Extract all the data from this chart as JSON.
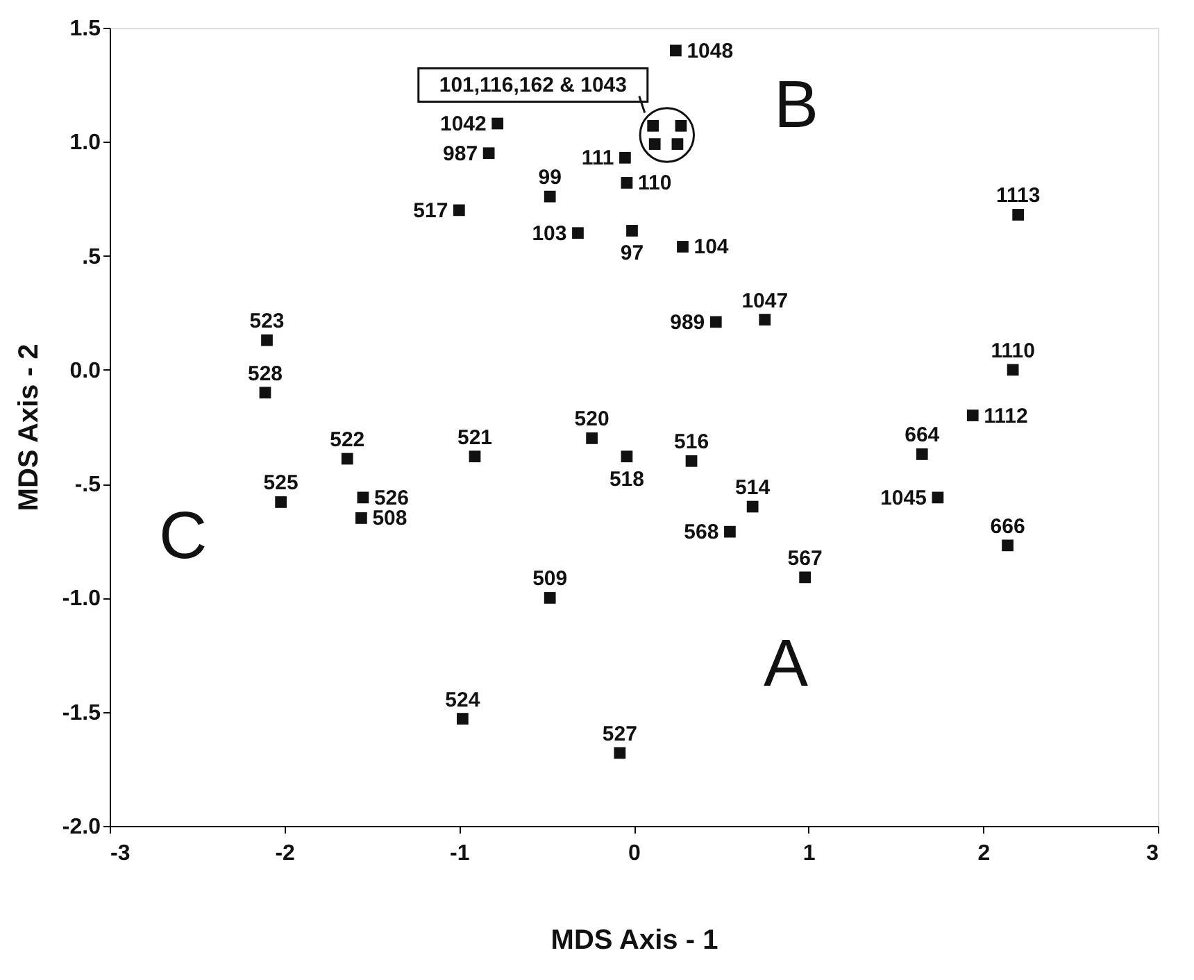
{
  "chart_data": {
    "type": "scatter",
    "xlabel": "MDS Axis - 1",
    "ylabel": "MDS Axis - 2",
    "xlim": [
      -3,
      3
    ],
    "ylim": [
      -2,
      1.5
    ],
    "xticks": [
      -3,
      -2,
      -1,
      0,
      1,
      2,
      3
    ],
    "yticks": [
      {
        "value": 1.5,
        "label": "1.5"
      },
      {
        "value": 1.0,
        "label": "1.0"
      },
      {
        "value": 0.5,
        "label": ".5"
      },
      {
        "value": 0.0,
        "label": "0.0"
      },
      {
        "value": -0.5,
        "label": "-.5"
      },
      {
        "value": -1.0,
        "label": "-1.0"
      },
      {
        "value": -1.5,
        "label": "-1.5"
      },
      {
        "value": -2.0,
        "label": "-2.0"
      }
    ],
    "grid": false,
    "marker": "square",
    "series": [
      {
        "color": "#111111",
        "x": [
          0.24,
          -0.78,
          -0.83,
          -0.48,
          -1.0,
          -0.32,
          -0.01,
          0.28,
          -0.05,
          -0.04,
          0.11,
          0.27,
          0.12,
          0.25,
          0.47,
          0.75,
          -2.1,
          -2.11,
          -1.64,
          -2.02,
          -1.55,
          -1.56,
          -0.91,
          -0.24,
          -0.04,
          -0.48,
          -0.98,
          -0.08,
          0.33,
          0.68,
          0.55,
          0.98,
          1.65,
          1.74,
          2.17,
          1.94,
          2.14,
          2.2
        ],
        "values": [
          1.4,
          1.08,
          0.95,
          0.76,
          0.7,
          0.6,
          0.61,
          0.54,
          0.93,
          0.82,
          1.07,
          1.07,
          0.99,
          0.99,
          0.21,
          0.22,
          0.13,
          -0.1,
          -0.39,
          -0.58,
          -0.56,
          -0.65,
          -0.38,
          -0.3,
          -0.38,
          -1.0,
          -1.53,
          -1.68,
          -0.4,
          -0.6,
          -0.71,
          -0.91,
          -0.37,
          -0.56,
          0.0,
          -0.2,
          -0.77,
          0.68
        ]
      }
    ],
    "annotations": [
      {
        "text": "1048",
        "x": 0.24,
        "y": 1.4
      },
      {
        "text": "1042",
        "x": -0.78,
        "y": 1.08
      },
      {
        "text": "987",
        "x": -0.83,
        "y": 0.95
      },
      {
        "text": "99",
        "x": -0.48,
        "y": 0.76
      },
      {
        "text": "517",
        "x": -1.0,
        "y": 0.7
      },
      {
        "text": "103",
        "x": -0.32,
        "y": 0.6
      },
      {
        "text": "97",
        "x": -0.01,
        "y": 0.61
      },
      {
        "text": "104",
        "x": 0.28,
        "y": 0.54
      },
      {
        "text": "111",
        "x": -0.05,
        "y": 0.93
      },
      {
        "text": "110",
        "x": -0.04,
        "y": 0.82
      },
      {
        "text": "989",
        "x": 0.47,
        "y": 0.21
      },
      {
        "text": "1047",
        "x": 0.75,
        "y": 0.22
      },
      {
        "text": "523",
        "x": -2.1,
        "y": 0.13
      },
      {
        "text": "528",
        "x": -2.11,
        "y": -0.1
      },
      {
        "text": "522",
        "x": -1.64,
        "y": -0.39
      },
      {
        "text": "525",
        "x": -2.02,
        "y": -0.58
      },
      {
        "text": "526",
        "x": -1.55,
        "y": -0.56
      },
      {
        "text": "508",
        "x": -1.56,
        "y": -0.65
      },
      {
        "text": "521",
        "x": -0.91,
        "y": -0.38
      },
      {
        "text": "520",
        "x": -0.24,
        "y": -0.3
      },
      {
        "text": "518",
        "x": -0.04,
        "y": -0.38
      },
      {
        "text": "509",
        "x": -0.48,
        "y": -1.0
      },
      {
        "text": "524",
        "x": -0.98,
        "y": -1.53
      },
      {
        "text": "527",
        "x": -0.08,
        "y": -1.68
      },
      {
        "text": "516",
        "x": 0.33,
        "y": -0.4
      },
      {
        "text": "514",
        "x": 0.68,
        "y": -0.6
      },
      {
        "text": "568",
        "x": 0.55,
        "y": -0.71
      },
      {
        "text": "567",
        "x": 0.98,
        "y": -0.91
      },
      {
        "text": "664",
        "x": 1.65,
        "y": -0.37
      },
      {
        "text": "1045",
        "x": 1.74,
        "y": -0.56
      },
      {
        "text": "1110",
        "x": 2.17,
        "y": 0.0
      },
      {
        "text": "1112",
        "x": 1.94,
        "y": -0.2
      },
      {
        "text": "666",
        "x": 2.14,
        "y": -0.77
      },
      {
        "text": "1113",
        "x": 2.2,
        "y": 0.68
      },
      {
        "text": "101,116,162 & 1043",
        "x": 0.19,
        "y": 1.03
      },
      "A",
      "B",
      "C"
    ]
  }
}
